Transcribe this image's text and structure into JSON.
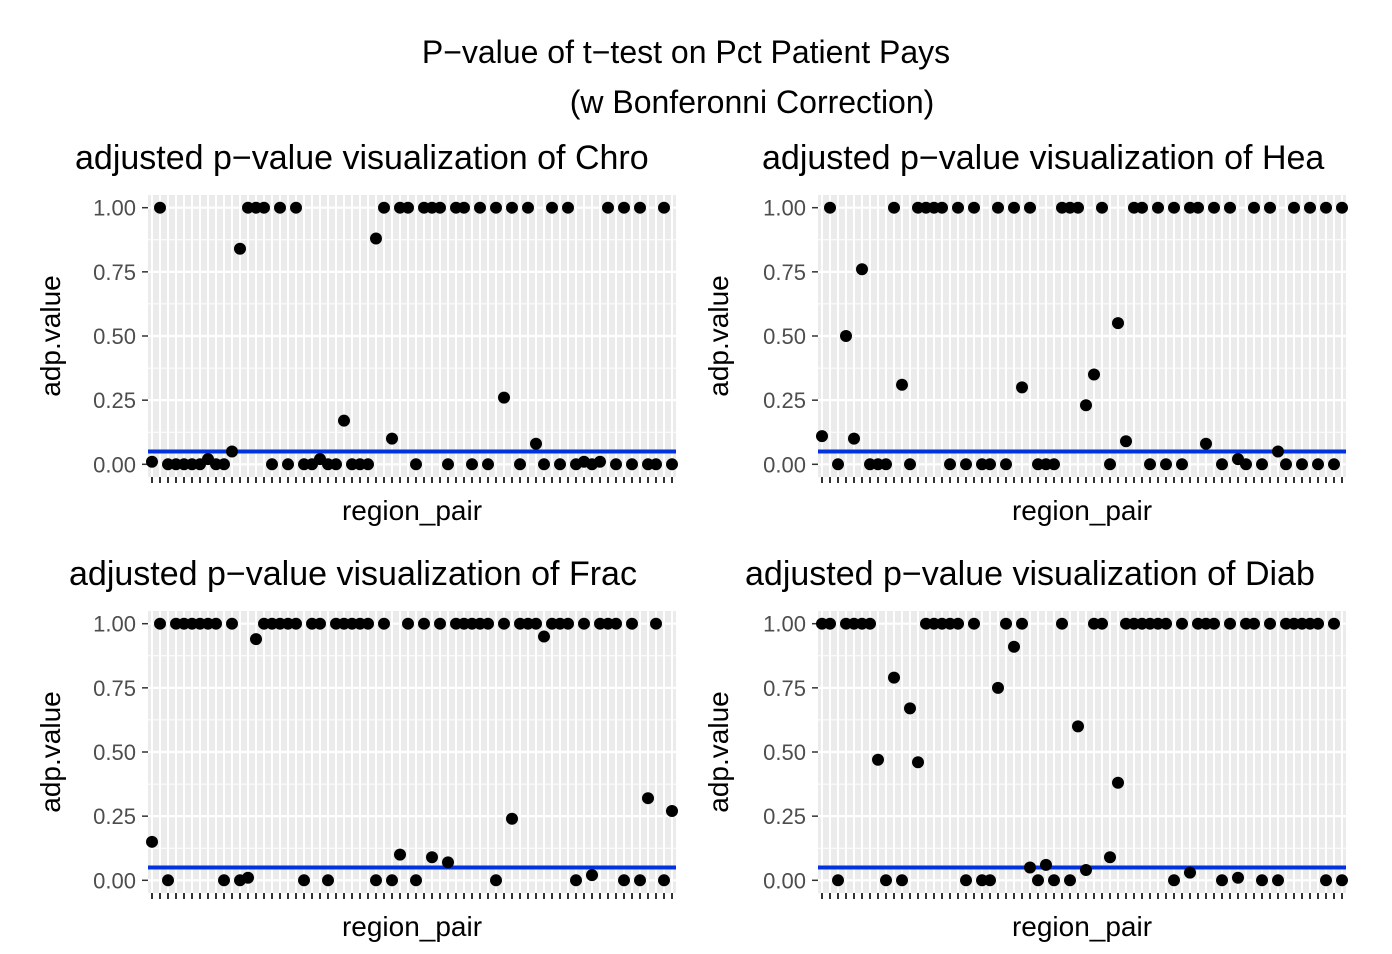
{
  "title": "P−value of t−test on Pct Patient Pays",
  "subtitle": "(w Bonferonni Correction)",
  "colors": {
    "threshold_line": "#0033dd",
    "point": "#000000",
    "panel_bg": "#ebebeb",
    "grid": "#ffffff"
  },
  "chart_data": [
    {
      "type": "scatter",
      "title": "adjusted p−value visualization of Chro",
      "xlabel": "region_pair",
      "ylabel": "adp.value",
      "ylim": [
        0,
        1
      ],
      "yticks": [
        "0.00",
        "0.25",
        "0.50",
        "0.75",
        "1.00"
      ],
      "threshold": 0.05,
      "values": [
        0.01,
        1.0,
        0,
        0,
        0,
        0,
        0,
        0.02,
        0,
        0,
        0.05,
        0.84,
        1.0,
        1.0,
        1.0,
        0,
        1.0,
        0,
        1.0,
        0,
        0,
        0.02,
        0,
        0,
        0.17,
        0,
        0,
        0,
        0.88,
        1.0,
        0.1,
        1.0,
        1.0,
        0,
        1.0,
        1.0,
        1.0,
        0,
        1.0,
        1.0,
        0,
        1.0,
        0,
        1.0,
        0.26,
        1.0,
        0,
        1.0,
        0.08,
        0,
        1.0,
        0,
        1.0,
        0,
        0.01,
        0,
        0.01,
        1.0,
        0,
        1.0,
        0,
        1.0,
        0,
        0,
        1.0,
        0
      ]
    },
    {
      "type": "scatter",
      "title": "adjusted p−value visualization of Hea",
      "xlabel": "region_pair",
      "ylabel": "adp.value",
      "ylim": [
        0,
        1
      ],
      "yticks": [
        "0.00",
        "0.25",
        "0.50",
        "0.75",
        "1.00"
      ],
      "threshold": 0.05,
      "values": [
        0.11,
        1.0,
        0,
        0.5,
        0.1,
        0.76,
        0,
        0,
        0,
        1.0,
        0.31,
        0,
        1.0,
        1.0,
        1.0,
        1.0,
        0,
        1.0,
        0,
        1.0,
        0,
        0,
        1.0,
        0,
        1.0,
        0.3,
        1.0,
        0,
        0,
        0,
        1.0,
        1.0,
        1.0,
        0.23,
        0.35,
        1.0,
        0,
        0.55,
        0.09,
        1.0,
        1.0,
        0,
        1.0,
        0,
        1.0,
        0,
        1.0,
        1.0,
        0.08,
        1.0,
        0,
        1.0,
        0.02,
        0,
        1.0,
        0,
        1.0,
        0.05,
        0,
        1.0,
        0,
        1.0,
        0,
        1.0,
        0,
        1.0
      ]
    },
    {
      "type": "scatter",
      "title": "adjusted p−value visualization of Frac",
      "xlabel": "region_pair",
      "ylabel": "adp.value",
      "ylim": [
        0,
        1
      ],
      "yticks": [
        "0.00",
        "0.25",
        "0.50",
        "0.75",
        "1.00"
      ],
      "threshold": 0.05,
      "values": [
        0.15,
        1.0,
        0,
        1.0,
        1.0,
        1.0,
        1.0,
        1.0,
        1.0,
        0,
        1.0,
        0,
        0.01,
        0.94,
        1.0,
        1.0,
        1.0,
        1.0,
        1.0,
        0,
        1.0,
        1.0,
        0,
        1.0,
        1.0,
        1.0,
        1.0,
        1.0,
        0,
        1.0,
        0,
        0.1,
        1.0,
        0,
        1.0,
        0.09,
        1.0,
        0.07,
        1.0,
        1.0,
        1.0,
        1.0,
        1.0,
        0,
        1.0,
        0.24,
        1.0,
        1.0,
        1.0,
        0.95,
        1.0,
        1.0,
        1.0,
        0,
        1.0,
        0.02,
        1.0,
        1.0,
        1.0,
        0,
        1.0,
        0,
        0.32,
        1.0,
        0,
        0.27
      ]
    },
    {
      "type": "scatter",
      "title": "adjusted p−value visualization of Diab",
      "xlabel": "region_pair",
      "ylabel": "adp.value",
      "ylim": [
        0,
        1
      ],
      "yticks": [
        "0.00",
        "0.25",
        "0.50",
        "0.75",
        "1.00"
      ],
      "threshold": 0.05,
      "values": [
        1.0,
        1.0,
        0,
        1.0,
        1.0,
        1.0,
        1.0,
        0.47,
        0,
        0.79,
        0,
        0.67,
        0.46,
        1.0,
        1.0,
        1.0,
        1.0,
        1.0,
        0,
        1.0,
        0,
        0,
        0.75,
        1.0,
        0.91,
        1.0,
        0.05,
        0,
        0.06,
        0,
        1.0,
        0,
        0.6,
        0.04,
        1.0,
        1.0,
        0.09,
        0.38,
        1.0,
        1.0,
        1.0,
        1.0,
        1.0,
        1.0,
        0,
        1.0,
        0.03,
        1.0,
        1.0,
        1.0,
        0,
        1.0,
        0.01,
        1.0,
        1.0,
        0,
        1.0,
        0,
        1.0,
        1.0,
        1.0,
        1.0,
        1.0,
        0,
        1.0,
        0
      ]
    }
  ]
}
